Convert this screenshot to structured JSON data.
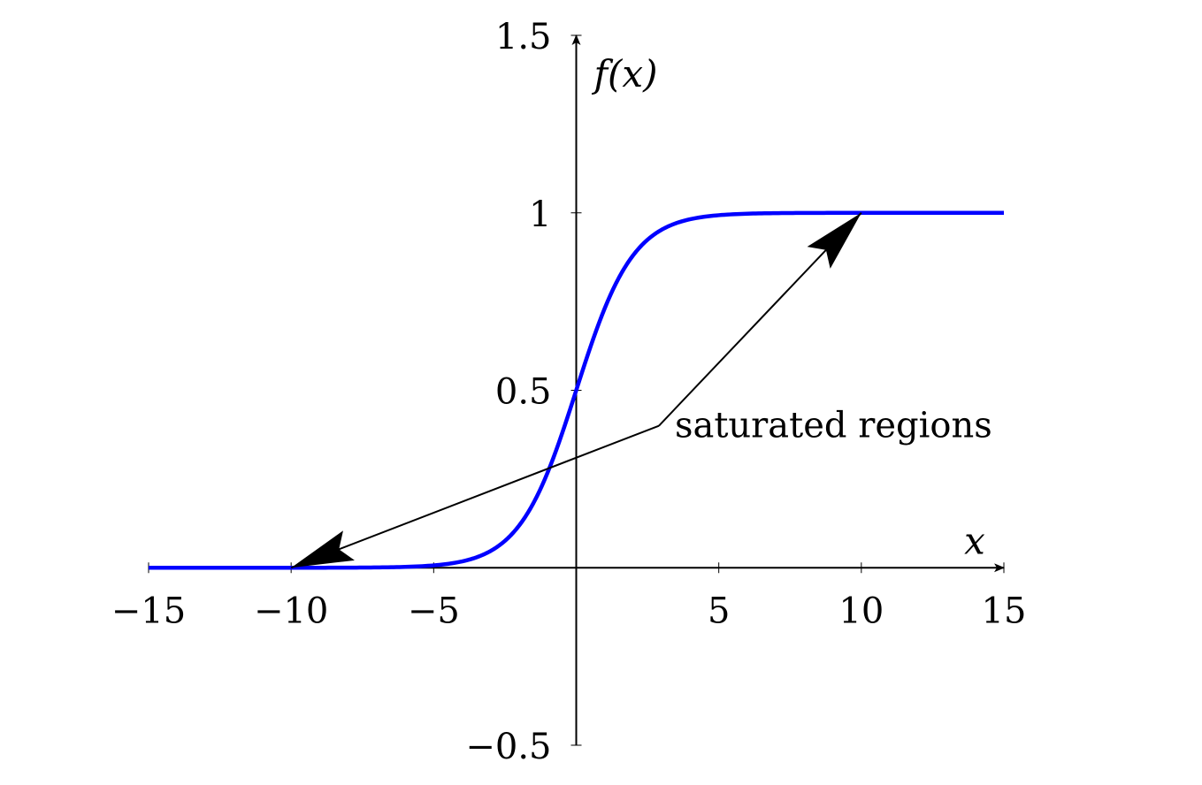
{
  "chart_data": {
    "type": "line",
    "xlabel": "x",
    "ylabel": "f(x)",
    "xlim": [
      -15,
      15
    ],
    "ylim": [
      -0.5,
      1.5
    ],
    "x_ticks": [
      -15,
      -10,
      -5,
      5,
      10,
      15
    ],
    "x_tick_labels": [
      "−15",
      "−10",
      "−5",
      "5",
      "10",
      "15"
    ],
    "y_ticks": [
      -0.5,
      0.5,
      1,
      1.5
    ],
    "y_tick_labels": [
      "−0.5",
      "0.5",
      "1",
      "1.5"
    ],
    "grid": false,
    "series": [
      {
        "color": "#0000ff",
        "function": "sigmoid",
        "x": [
          -15,
          -10,
          -8,
          -6,
          -5,
          -4,
          -3,
          -2.5,
          -2,
          -1.5,
          -1,
          -0.5,
          0,
          0.5,
          1,
          1.5,
          2,
          2.5,
          3,
          4,
          5,
          6,
          8,
          10,
          15
        ],
        "y": [
          0.0,
          0.0,
          0.0003,
          0.0025,
          0.0067,
          0.018,
          0.047,
          0.076,
          0.119,
          0.182,
          0.269,
          0.378,
          0.5,
          0.622,
          0.731,
          0.818,
          0.881,
          0.924,
          0.953,
          0.982,
          0.9933,
          0.9975,
          0.9997,
          1.0,
          1.0
        ]
      }
    ],
    "annotation": {
      "text": "saturated regions",
      "anchor": [
        2.9,
        0.4
      ],
      "arrows_to": [
        [
          10,
          1
        ],
        [
          -10,
          0
        ]
      ]
    }
  }
}
